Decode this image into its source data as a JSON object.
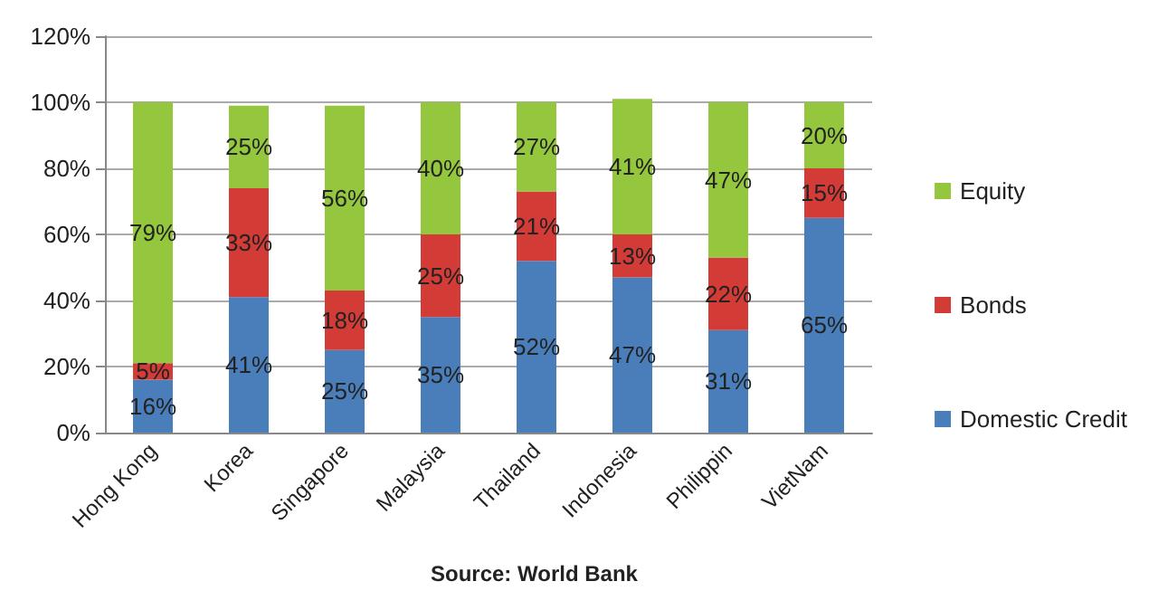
{
  "chart_data": {
    "type": "bar",
    "stacked": true,
    "categories": [
      "Hong Kong",
      "Korea",
      "Singapore",
      "Malaysia",
      "Thailand",
      "Indonesia",
      "Philippin",
      "VietNam"
    ],
    "series": [
      {
        "name": "Domestic Credit",
        "color": "#4a7ebb",
        "values": [
          16,
          41,
          25,
          35,
          52,
          47,
          31,
          65
        ],
        "value_labels": [
          "16%",
          "41%",
          "25%",
          "35%",
          "52%",
          "47%",
          "31%",
          "65%"
        ]
      },
      {
        "name": "Bonds",
        "color": "#d23b36",
        "values": [
          5,
          33,
          18,
          25,
          21,
          13,
          22,
          15
        ],
        "value_labels": [
          "5%",
          "33%",
          "18%",
          "25%",
          "21%",
          "13%",
          "22%",
          "15%"
        ]
      },
      {
        "name": "Equity",
        "color": "#94c63e",
        "values": [
          79,
          25,
          56,
          40,
          27,
          41,
          47,
          20
        ],
        "value_labels": [
          "79%",
          "25%",
          "56%",
          "40%",
          "27%",
          "41%",
          "47%",
          "20%"
        ]
      }
    ],
    "ylim": [
      0,
      120
    ],
    "yticks": [
      {
        "value": 0,
        "label": "0%"
      },
      {
        "value": 20,
        "label": "20%"
      },
      {
        "value": 40,
        "label": "40%"
      },
      {
        "value": 60,
        "label": "60%"
      },
      {
        "value": 80,
        "label": "80%"
      },
      {
        "value": 100,
        "label": "100%"
      },
      {
        "value": 120,
        "label": "120%"
      }
    ],
    "grid": "y",
    "legend": "right",
    "annotations": [
      "Source: World Bank"
    ]
  }
}
